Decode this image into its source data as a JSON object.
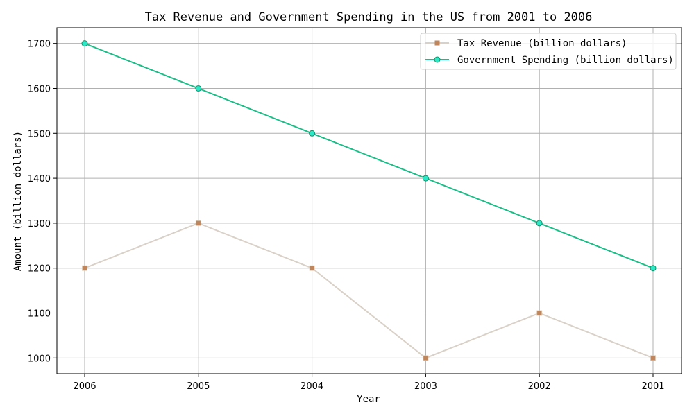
{
  "chart_data": {
    "type": "line",
    "title": "Tax Revenue and Government Spending in the US from 2001 to 2006",
    "xlabel": "Year",
    "ylabel": "Amount (billion dollars)",
    "categories": [
      "2006",
      "2005",
      "2004",
      "2003",
      "2002",
      "2001"
    ],
    "ylim": [
      965,
      1735
    ],
    "yticks": [
      1000,
      1100,
      1200,
      1300,
      1400,
      1500,
      1600,
      1700
    ],
    "grid": true,
    "legend_position": "top-right",
    "series": [
      {
        "name": "Tax Revenue (billion dollars)",
        "values": [
          1200,
          1300,
          1200,
          1000,
          1100,
          1000
        ],
        "line_color": "#d9d1c7",
        "marker_color": "#c0855a",
        "marker": "square"
      },
      {
        "name": "Government Spending (billion dollars)",
        "values": [
          1700,
          1600,
          1500,
          1400,
          1300,
          1200
        ],
        "line_color": "#1abc87",
        "marker_color": "#2de8c6",
        "marker": "circle"
      }
    ]
  }
}
